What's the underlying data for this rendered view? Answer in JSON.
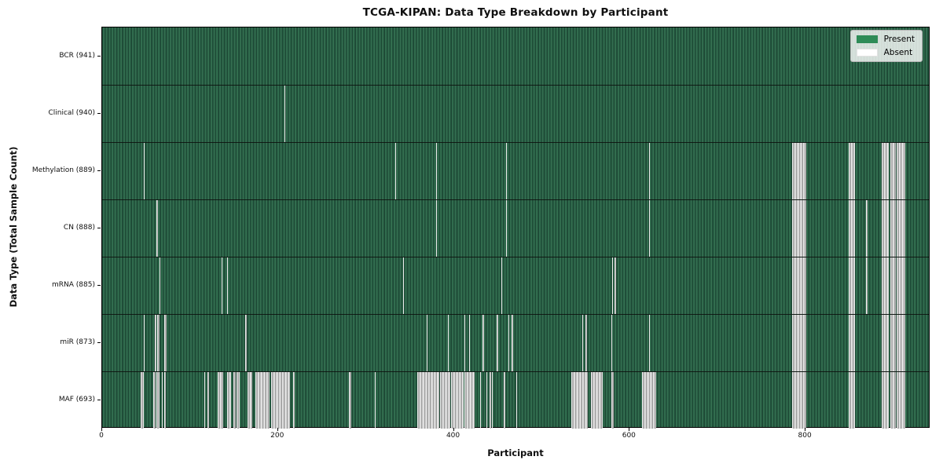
{
  "title": "TCGA-KIPAN: Data Type Breakdown by Participant",
  "axes": {
    "xlabel": "Participant",
    "ylabel": "Data Type (Total Sample Count)"
  },
  "legend": {
    "items": [
      {
        "label": "Present",
        "color": "#2e8b57"
      },
      {
        "label": "Absent",
        "color": "#ffffff"
      }
    ]
  },
  "colors": {
    "present": "#2e8b57",
    "present_dark_edge": "#1d4935",
    "absent": "#ffffff",
    "absent_edge": "#909090",
    "frame": "#000000",
    "background": "#ffffff"
  },
  "chart_data": {
    "type": "heatmap",
    "title": "TCGA-KIPAN: Data Type Breakdown by Participant",
    "xlabel": "Participant",
    "ylabel": "Data Type (Total Sample Count)",
    "legend": [
      "Present",
      "Absent"
    ],
    "legend_position": "upper right",
    "x_ticks": [
      0,
      200,
      400,
      600,
      800
    ],
    "xlim": [
      0,
      942
    ],
    "n_participants": 942,
    "grid": false,
    "rows": [
      {
        "data_type": "BCR",
        "label": "BCR (941)",
        "present_count": 941,
        "absent_segments": []
      },
      {
        "data_type": "Clinical",
        "label": "Clinical (940)",
        "present_count": 940,
        "absent_segments": [
          [
            207,
            208
          ]
        ]
      },
      {
        "data_type": "Methylation",
        "label": "Methylation (889)",
        "present_count": 889,
        "absent_segments": [
          [
            47,
            48
          ],
          [
            333,
            334
          ],
          [
            380,
            381
          ],
          [
            459,
            460
          ],
          [
            622,
            623
          ],
          [
            785,
            801
          ],
          [
            849,
            856
          ],
          [
            887,
            895
          ],
          [
            896,
            903
          ],
          [
            904,
            913
          ]
        ]
      },
      {
        "data_type": "CN",
        "label": "CN (888)",
        "present_count": 888,
        "absent_segments": [
          [
            62,
            63
          ],
          [
            380,
            381
          ],
          [
            459,
            460
          ],
          [
            622,
            623
          ],
          [
            785,
            801
          ],
          [
            849,
            856
          ],
          [
            869,
            870
          ],
          [
            887,
            895
          ],
          [
            896,
            903
          ],
          [
            904,
            913
          ]
        ]
      },
      {
        "data_type": "mRNA",
        "label": "mRNA (885)",
        "present_count": 885,
        "absent_segments": [
          [
            65,
            66
          ],
          [
            136,
            137
          ],
          [
            142,
            143
          ],
          [
            342,
            343
          ],
          [
            454,
            455
          ],
          [
            580,
            581
          ],
          [
            583,
            584
          ],
          [
            785,
            801
          ],
          [
            849,
            856
          ],
          [
            869,
            870
          ],
          [
            887,
            895
          ],
          [
            896,
            903
          ],
          [
            904,
            913
          ]
        ]
      },
      {
        "data_type": "miR",
        "label": "miR (873)",
        "present_count": 873,
        "absent_segments": [
          [
            47,
            48
          ],
          [
            60,
            62
          ],
          [
            63,
            65
          ],
          [
            71,
            73
          ],
          [
            163,
            164
          ],
          [
            369,
            370
          ],
          [
            393,
            394
          ],
          [
            412,
            413
          ],
          [
            417,
            418
          ],
          [
            433,
            434
          ],
          [
            449,
            450
          ],
          [
            462,
            463
          ],
          [
            466,
            467
          ],
          [
            546,
            547
          ],
          [
            550,
            551
          ],
          [
            579,
            580
          ],
          [
            622,
            623
          ],
          [
            785,
            801
          ],
          [
            849,
            856
          ],
          [
            887,
            895
          ],
          [
            896,
            903
          ],
          [
            904,
            913
          ]
        ]
      },
      {
        "data_type": "MAF",
        "label": "MAF (693)",
        "present_count": 693,
        "absent_segments": [
          [
            44,
            47
          ],
          [
            58,
            61
          ],
          [
            62,
            65
          ],
          [
            68,
            69
          ],
          [
            71,
            72
          ],
          [
            116,
            117
          ],
          [
            120,
            121
          ],
          [
            131,
            138
          ],
          [
            142,
            147
          ],
          [
            149,
            152
          ],
          [
            153,
            156
          ],
          [
            165,
            171
          ],
          [
            174,
            190
          ],
          [
            192,
            214
          ],
          [
            217,
            219
          ],
          [
            281,
            283
          ],
          [
            310,
            311
          ],
          [
            358,
            383
          ],
          [
            384,
            396
          ],
          [
            397,
            411
          ],
          [
            412,
            424
          ],
          [
            430,
            431
          ],
          [
            437,
            438
          ],
          [
            441,
            442
          ],
          [
            443,
            444
          ],
          [
            457,
            458
          ],
          [
            471,
            472
          ],
          [
            534,
            552
          ],
          [
            556,
            569
          ],
          [
            579,
            582
          ],
          [
            614,
            630
          ],
          [
            785,
            801
          ],
          [
            849,
            856
          ],
          [
            887,
            895
          ],
          [
            896,
            903
          ],
          [
            904,
            913
          ]
        ]
      }
    ]
  }
}
